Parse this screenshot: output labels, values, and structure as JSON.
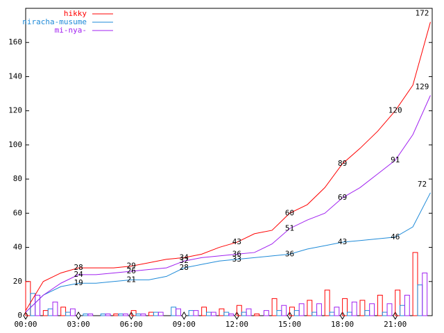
{
  "chart_data": {
    "type": "line",
    "x": [
      0,
      1,
      2,
      3,
      4,
      5,
      6,
      7,
      8,
      9,
      10,
      11,
      12,
      13,
      14,
      15,
      16,
      17,
      18,
      19,
      20,
      21,
      22,
      23
    ],
    "series": [
      {
        "name": "hikky",
        "color": "#ff0000",
        "values": [
          3,
          20,
          25,
          28,
          28,
          28,
          29,
          31,
          33,
          34,
          36,
          40,
          43,
          48,
          50,
          60,
          65,
          75,
          89,
          98,
          108,
          120,
          135,
          172
        ]
      },
      {
        "name": "niracha-musume",
        "color": "#1e8ad8",
        "values": [
          2,
          12,
          17,
          19,
          19,
          20,
          21,
          21,
          23,
          28,
          30,
          32,
          33,
          34,
          35,
          36,
          39,
          41,
          43,
          44,
          45,
          46,
          52,
          72
        ]
      },
      {
        "name": "mi-nya-",
        "color": "#a020f0",
        "values": [
          2,
          12,
          19,
          24,
          24,
          25,
          26,
          27,
          28,
          32,
          34,
          35,
          36,
          37,
          42,
          51,
          56,
          60,
          69,
          75,
          83,
          91,
          106,
          129
        ]
      }
    ],
    "bars": {
      "x": [
        0,
        1,
        2,
        3,
        4,
        5,
        6,
        7,
        8,
        9,
        10,
        11,
        12,
        13,
        14,
        15,
        16,
        17,
        18,
        19,
        20,
        21,
        22
      ],
      "series": [
        {
          "values": [
            20,
            3,
            5,
            0,
            0,
            1,
            3,
            2,
            0,
            0,
            5,
            4,
            6,
            1,
            10,
            5,
            9,
            15,
            10,
            9,
            12,
            15,
            37
          ]
        },
        {
          "values": [
            13,
            4,
            2,
            1,
            1,
            1,
            1,
            2,
            5,
            3,
            2,
            2,
            2,
            0,
            3,
            3,
            2,
            2,
            2,
            3,
            2,
            6,
            18
          ]
        },
        {
          "values": [
            12,
            8,
            4,
            1,
            1,
            1,
            1,
            2,
            4,
            3,
            2,
            1,
            4,
            3,
            6,
            7,
            7,
            5,
            8,
            7,
            7,
            12,
            25
          ]
        }
      ]
    },
    "xlim": [
      0,
      23.1
    ],
    "ylim": [
      0,
      180
    ],
    "xticks": [
      {
        "value": 0,
        "label": "00:00"
      },
      {
        "value": 3,
        "label": "03:00"
      },
      {
        "value": 6,
        "label": "06:00"
      },
      {
        "value": 9,
        "label": "09:00"
      },
      {
        "value": 12,
        "label": "12:00"
      },
      {
        "value": 15,
        "label": "15:00"
      },
      {
        "value": 18,
        "label": "18:00"
      },
      {
        "value": 21,
        "label": "21:00"
      }
    ],
    "yticks": [
      0,
      20,
      40,
      60,
      80,
      100,
      120,
      140,
      160
    ],
    "legend": "top-left"
  }
}
